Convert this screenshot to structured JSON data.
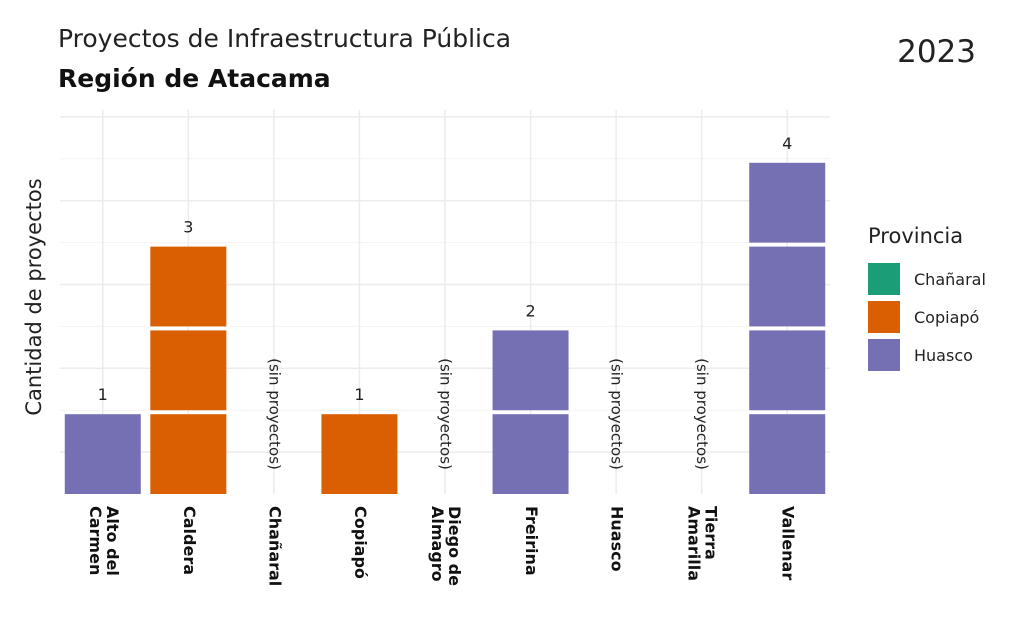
{
  "chart_data": {
    "type": "bar",
    "title": "Proyectos de Infraestructura Pública",
    "subtitle": "Región de Atacama",
    "year": "2023",
    "ylabel": "Cantidad de proyectos",
    "xlabel": "",
    "ylim": [
      0,
      4.6
    ],
    "grid": true,
    "legend": {
      "title": "Provincia",
      "position": "right"
    },
    "provinces": [
      {
        "name": "Chañaral",
        "color": "#1b9e77"
      },
      {
        "name": "Copiapó",
        "color": "#d95f02"
      },
      {
        "name": "Huasco",
        "color": "#7570b3"
      }
    ],
    "categories": [
      "Alto del Carmen",
      "Caldera",
      "Chañaral",
      "Copiapó",
      "Diego de Almagro",
      "Freirina",
      "Huasco",
      "Tierra Amarilla",
      "Vallenar"
    ],
    "category_lines": [
      [
        "Alto del",
        "Carmen"
      ],
      [
        "Caldera"
      ],
      [
        "Chañaral"
      ],
      [
        "Copiapó"
      ],
      [
        "Diego de",
        "Almagro"
      ],
      [
        "Freirina"
      ],
      [
        "Huasco"
      ],
      [
        "Tierra",
        "Amarilla"
      ],
      [
        "Vallenar"
      ]
    ],
    "values": [
      1,
      3,
      0,
      1,
      0,
      2,
      0,
      0,
      4
    ],
    "province_of_bar": [
      "Huasco",
      "Copiapó",
      "Chañaral",
      "Copiapó",
      "Chañaral",
      "Huasco",
      "Huasco",
      "Copiapó",
      "Huasco"
    ],
    "value_labels": [
      "1",
      "3",
      "",
      "1",
      "",
      "2",
      "",
      "",
      "4"
    ],
    "empty_label": "(sin proyectos)"
  }
}
